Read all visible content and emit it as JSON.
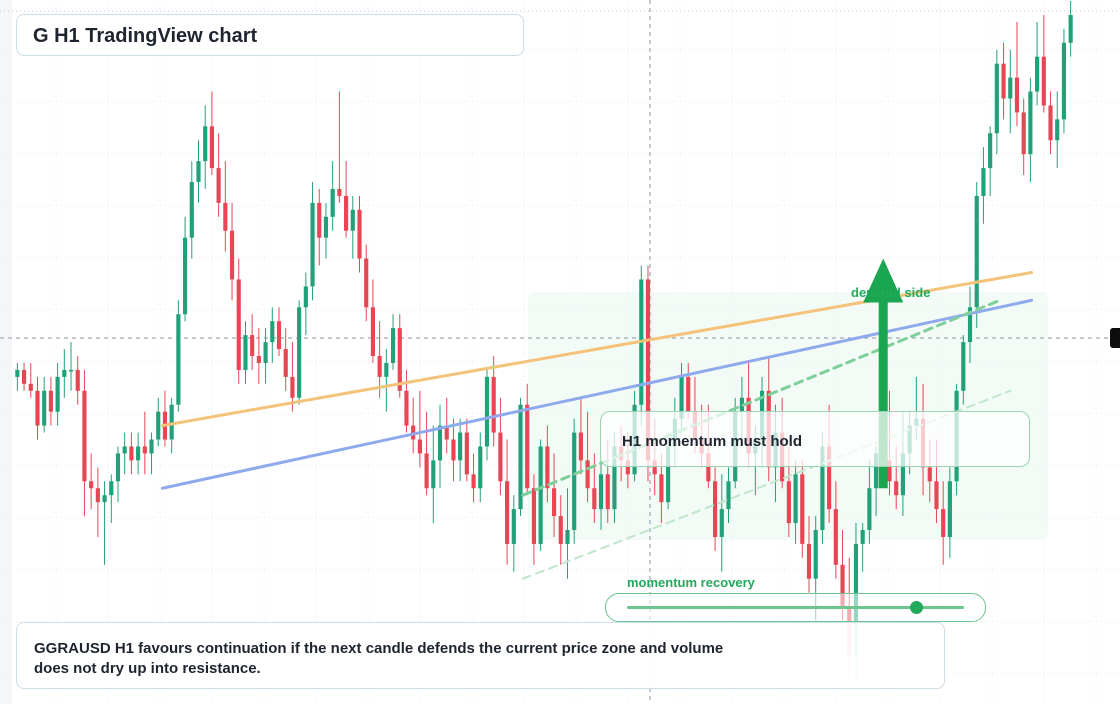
{
  "chart_title": "G H1 TradingView chart",
  "labels": {
    "callout": "H1 momentum must hold",
    "demand": "demand side",
    "momentum": "momentum recovery"
  },
  "note": "GGRAUSD H1 favours continuation if the next candle defends the current price zone and volume does not dry up into resistance.",
  "slider": {
    "value": 0.86
  },
  "colors": {
    "up": "#22a07a",
    "down": "#e84555",
    "resistance": "#f5c27a",
    "trend": "#8ea9ec",
    "accent": "#22a95b",
    "grid": "#e4eaef"
  },
  "chart_data": {
    "type": "candlestick",
    "title": "G H1 TradingView chart",
    "xlabel": "",
    "ylabel": "",
    "grid": true,
    "crosshair": true,
    "ylim": [
      0,
      100
    ],
    "overlays": [
      {
        "kind": "trendline",
        "color": "#f5c27a",
        "from": [
          0.14,
          40
        ],
        "to": [
          0.96,
          62
        ]
      },
      {
        "kind": "trendline",
        "color": "#8ea9ec",
        "from": [
          0.14,
          31
        ],
        "to": [
          0.96,
          58
        ]
      },
      {
        "kind": "trendline",
        "color": "#7fcf9c",
        "style": "dashed",
        "from": [
          0.48,
          30
        ],
        "to": [
          0.93,
          58
        ]
      },
      {
        "kind": "trendline",
        "color": "#bfe6cb",
        "style": "dashed",
        "from": [
          0.48,
          18
        ],
        "to": [
          0.94,
          45
        ]
      },
      {
        "kind": "arrow",
        "color": "#1aa550",
        "from": [
          0.82,
          31
        ],
        "to": [
          0.82,
          64
        ]
      }
    ],
    "candles": [
      [
        47,
        49,
        45,
        48
      ],
      [
        48,
        49,
        45,
        46
      ],
      [
        46,
        49,
        44,
        45
      ],
      [
        45,
        47,
        38,
        40
      ],
      [
        40,
        47,
        39,
        45
      ],
      [
        45,
        47,
        40,
        42
      ],
      [
        42,
        49,
        40,
        47
      ],
      [
        47,
        51,
        44,
        48
      ],
      [
        48,
        52,
        45,
        48
      ],
      [
        48,
        50,
        43,
        45
      ],
      [
        45,
        48,
        27,
        32
      ],
      [
        32,
        36,
        28,
        31
      ],
      [
        31,
        34,
        24,
        29
      ],
      [
        29,
        32,
        20,
        30
      ],
      [
        30,
        33,
        26,
        32
      ],
      [
        32,
        37,
        29,
        36
      ],
      [
        36,
        39,
        33,
        37
      ],
      [
        37,
        39,
        33,
        35
      ],
      [
        35,
        39,
        33,
        37
      ],
      [
        37,
        42,
        33,
        36
      ],
      [
        36,
        39,
        33,
        38
      ],
      [
        38,
        44,
        37,
        42
      ],
      [
        42,
        45,
        37,
        38
      ],
      [
        38,
        44,
        36,
        43
      ],
      [
        43,
        58,
        42,
        56
      ],
      [
        56,
        70,
        55,
        67
      ],
      [
        67,
        78,
        64,
        75
      ],
      [
        75,
        81,
        72,
        78
      ],
      [
        78,
        86,
        74,
        83
      ],
      [
        83,
        88,
        76,
        77
      ],
      [
        77,
        82,
        70,
        72
      ],
      [
        72,
        78,
        65,
        68
      ],
      [
        68,
        72,
        58,
        61
      ],
      [
        61,
        64,
        46,
        48
      ],
      [
        48,
        55,
        46,
        53
      ],
      [
        53,
        56,
        48,
        50
      ],
      [
        50,
        54,
        46,
        49
      ],
      [
        49,
        54,
        46,
        52
      ],
      [
        52,
        57,
        49,
        55
      ],
      [
        55,
        57,
        50,
        51
      ],
      [
        51,
        54,
        45,
        47
      ],
      [
        47,
        52,
        42,
        44
      ],
      [
        44,
        58,
        43,
        57
      ],
      [
        57,
        62,
        53,
        60
      ],
      [
        60,
        75,
        58,
        72
      ],
      [
        72,
        74,
        63,
        67
      ],
      [
        67,
        72,
        64,
        70
      ],
      [
        70,
        78,
        68,
        74
      ],
      [
        74,
        88,
        72,
        73
      ],
      [
        73,
        78,
        67,
        68
      ],
      [
        68,
        73,
        64,
        71
      ],
      [
        71,
        73,
        62,
        64
      ],
      [
        64,
        66,
        55,
        57
      ],
      [
        57,
        61,
        49,
        50
      ],
      [
        50,
        55,
        44,
        47
      ],
      [
        47,
        51,
        42,
        49
      ],
      [
        49,
        56,
        48,
        54
      ],
      [
        54,
        56,
        44,
        45
      ],
      [
        45,
        48,
        39,
        40
      ],
      [
        40,
        44,
        36,
        38
      ],
      [
        38,
        45,
        34,
        36
      ],
      [
        36,
        42,
        30,
        31
      ],
      [
        31,
        40,
        26,
        35
      ],
      [
        35,
        43,
        31,
        40
      ],
      [
        40,
        44,
        36,
        38
      ],
      [
        38,
        41,
        32,
        35
      ],
      [
        35,
        41,
        32,
        39
      ],
      [
        39,
        41,
        32,
        33
      ],
      [
        33,
        36,
        29,
        31
      ],
      [
        31,
        39,
        29,
        37
      ],
      [
        37,
        48,
        35,
        47
      ],
      [
        47,
        50,
        37,
        39
      ],
      [
        39,
        44,
        30,
        32
      ],
      [
        32,
        38,
        20,
        23
      ],
      [
        23,
        30,
        19,
        28
      ],
      [
        28,
        44,
        27,
        43
      ],
      [
        43,
        46,
        30,
        31
      ],
      [
        31,
        33,
        20,
        23
      ],
      [
        23,
        38,
        22,
        37
      ],
      [
        37,
        40,
        29,
        31
      ],
      [
        31,
        36,
        24,
        27
      ],
      [
        27,
        30,
        20,
        23
      ],
      [
        23,
        31,
        18,
        25
      ],
      [
        25,
        41,
        23,
        39
      ],
      [
        39,
        44,
        33,
        35
      ],
      [
        35,
        42,
        29,
        31
      ],
      [
        31,
        36,
        26,
        28
      ],
      [
        28,
        35,
        25,
        33
      ],
      [
        33,
        38,
        26,
        28
      ],
      [
        28,
        39,
        26,
        37
      ],
      [
        37,
        40,
        32,
        35
      ],
      [
        35,
        39,
        31,
        33
      ],
      [
        33,
        45,
        32,
        43
      ],
      [
        43,
        63,
        40,
        61
      ],
      [
        61,
        63,
        32,
        35
      ],
      [
        35,
        41,
        30,
        33
      ],
      [
        33,
        36,
        26,
        29
      ],
      [
        29,
        39,
        28,
        37
      ],
      [
        37,
        44,
        34,
        41
      ],
      [
        41,
        49,
        39,
        47
      ],
      [
        47,
        49,
        41,
        42
      ],
      [
        42,
        47,
        36,
        38
      ],
      [
        38,
        43,
        34,
        36
      ],
      [
        36,
        43,
        31,
        32
      ],
      [
        32,
        34,
        22,
        24
      ],
      [
        24,
        33,
        19,
        28
      ],
      [
        28,
        34,
        26,
        32
      ],
      [
        32,
        44,
        31,
        42
      ],
      [
        42,
        47,
        38,
        44
      ],
      [
        44,
        49,
        34,
        36
      ],
      [
        36,
        40,
        30,
        38
      ],
      [
        38,
        47,
        34,
        45
      ],
      [
        45,
        50,
        32,
        34
      ],
      [
        34,
        43,
        29,
        39
      ],
      [
        39,
        44,
        31,
        32
      ],
      [
        32,
        37,
        24,
        26
      ],
      [
        26,
        35,
        23,
        33
      ],
      [
        33,
        35,
        21,
        23
      ],
      [
        23,
        27,
        16,
        18
      ],
      [
        18,
        27,
        12,
        25
      ],
      [
        25,
        39,
        23,
        37
      ],
      [
        37,
        43,
        26,
        28
      ],
      [
        28,
        32,
        18,
        20
      ],
      [
        20,
        25,
        12,
        14
      ],
      [
        14,
        21,
        4,
        7
      ],
      [
        7,
        26,
        3,
        23
      ],
      [
        23,
        26,
        19,
        25
      ],
      [
        25,
        35,
        23,
        31
      ],
      [
        31,
        37,
        27,
        36
      ],
      [
        36,
        43,
        33,
        35
      ],
      [
        35,
        45,
        30,
        32
      ],
      [
        32,
        37,
        28,
        30
      ],
      [
        30,
        42,
        27,
        36
      ],
      [
        36,
        42,
        33,
        40
      ],
      [
        40,
        47,
        38,
        41
      ],
      [
        41,
        46,
        30,
        34
      ],
      [
        34,
        38,
        29,
        32
      ],
      [
        32,
        38,
        26,
        28
      ],
      [
        28,
        32,
        20,
        24
      ],
      [
        24,
        34,
        21,
        32
      ],
      [
        32,
        46,
        30,
        45
      ],
      [
        45,
        53,
        43,
        52
      ],
      [
        52,
        60,
        49,
        57
      ],
      [
        57,
        75,
        54,
        73
      ],
      [
        73,
        80,
        69,
        77
      ],
      [
        77,
        83,
        73,
        82
      ],
      [
        82,
        94,
        79,
        92
      ],
      [
        92,
        95,
        84,
        87
      ],
      [
        87,
        94,
        82,
        90
      ],
      [
        90,
        98,
        83,
        85
      ],
      [
        85,
        87,
        76,
        79
      ],
      [
        79,
        90,
        75,
        88
      ],
      [
        88,
        98,
        86,
        93
      ],
      [
        93,
        99,
        85,
        86
      ],
      [
        86,
        88,
        79,
        81
      ],
      [
        81,
        88,
        77,
        84
      ],
      [
        84,
        97,
        82,
        95
      ],
      [
        95,
        101,
        93,
        99
      ]
    ]
  }
}
